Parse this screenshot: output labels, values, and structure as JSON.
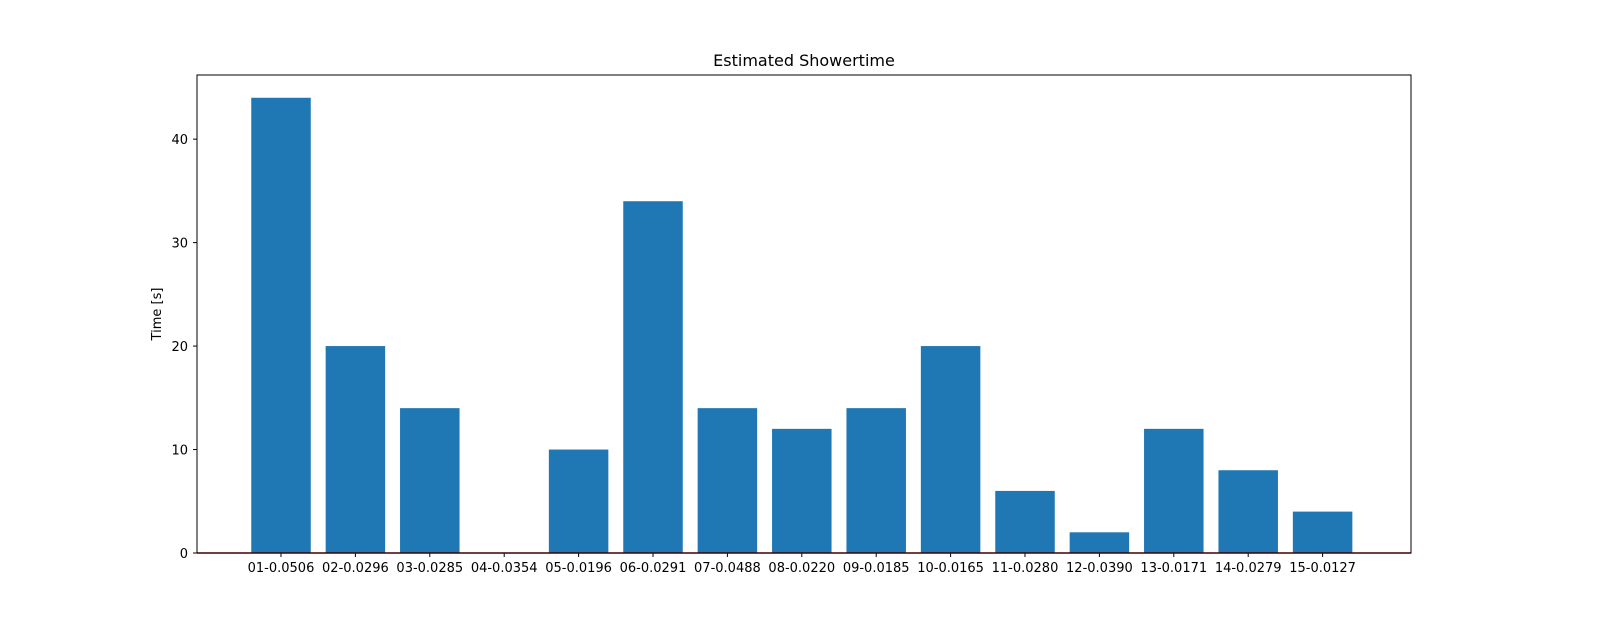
{
  "chart_data": {
    "type": "bar",
    "title": "Estimated Showertime",
    "xlabel": "",
    "ylabel": "Time [s]",
    "categories": [
      "01-0.0506",
      "02-0.0296",
      "03-0.0285",
      "04-0.0354",
      "05-0.0196",
      "06-0.0291",
      "07-0.0488",
      "08-0.0220",
      "09-0.0185",
      "10-0.0165",
      "11-0.0280",
      "12-0.0390",
      "13-0.0171",
      "14-0.0279",
      "15-0.0127"
    ],
    "values": [
      44,
      20,
      14,
      0,
      10,
      34,
      14,
      12,
      14,
      20,
      6,
      2,
      12,
      8,
      4
    ],
    "ylim": [
      0,
      46.2
    ],
    "yticks": [
      0,
      10,
      20,
      30,
      40
    ],
    "bar_color": "#1f77b4",
    "baseline_color": "#c00000",
    "grid": false
  }
}
